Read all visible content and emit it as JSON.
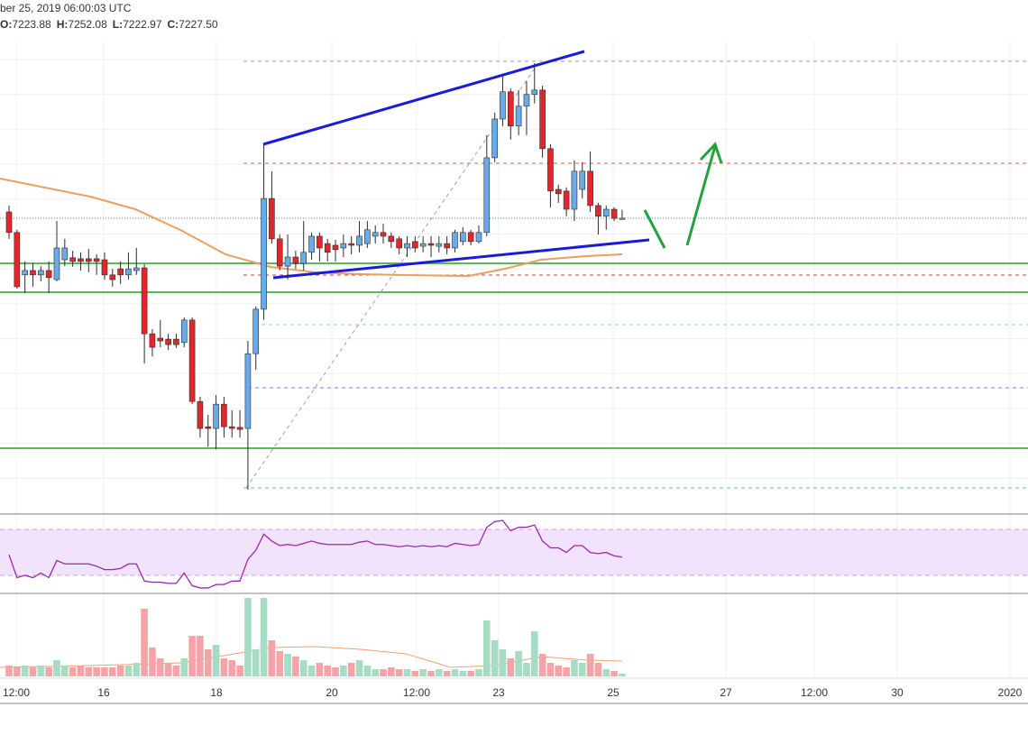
{
  "chart_data": {
    "type": "candlestick",
    "header": {
      "date": "ber 25, 2019 06:00:03 UTC",
      "fields": [
        "O:",
        "H:",
        "L:",
        "C:"
      ],
      "value_labels": [
        "7223.88",
        "7252.08",
        "7222.97",
        "7227.50"
      ]
    },
    "x_labels": [
      "12:00",
      "16",
      "18",
      "20",
      "12:00",
      "23",
      "25",
      "27",
      "12:00",
      "30",
      "2020"
    ],
    "open": [
      7246,
      7185,
      7059,
      7072,
      7059,
      7072,
      7045,
      7104,
      7110,
      7107,
      7107,
      7107,
      7104,
      7059,
      7077,
      7059,
      7072,
      7080,
      6884,
      6871,
      6868,
      6868,
      6858,
      6925,
      6683,
      6608,
      6603,
      6675,
      6608,
      6606,
      6603,
      6825,
      6957,
      7286,
      7166,
      7085,
      7112,
      7093,
      7126,
      7174,
      7152,
      7147,
      7139,
      7152,
      7147,
      7152,
      7174,
      7185,
      7174,
      7166,
      7139,
      7158,
      7144,
      7152,
      7144,
      7152,
      7139,
      7158,
      7185,
      7158,
      7185,
      7407,
      7522,
      7603,
      7501,
      7560,
      7595,
      7608,
      7434,
      7313,
      7308,
      7254,
      7313,
      7367,
      7265,
      7233,
      7254,
      7223.88
    ],
    "high": [
      7265,
      7193,
      7099,
      7093,
      7085,
      7099,
      7219,
      7166,
      7131,
      7126,
      7136,
      7120,
      7126,
      7077,
      7099,
      7126,
      7139,
      7091,
      6898,
      6925,
      6884,
      6884,
      6933,
      6933,
      6697,
      6643,
      6702,
      6697,
      6657,
      6657,
      6863,
      6965,
      7447,
      7367,
      7179,
      7179,
      7131,
      7219,
      7185,
      7185,
      7166,
      7163,
      7179,
      7174,
      7219,
      7219,
      7206,
      7211,
      7185,
      7174,
      7174,
      7174,
      7174,
      7174,
      7174,
      7174,
      7193,
      7201,
      7193,
      7206,
      7474,
      7541,
      7648,
      7613,
      7608,
      7635,
      7688,
      7621,
      7447,
      7327,
      7319,
      7399,
      7394,
      7426,
      7273,
      7265,
      7260,
      7252.08
    ],
    "low": [
      7166,
      7018,
      7005,
      7024,
      7040,
      7005,
      7040,
      7085,
      7083,
      7072,
      7067,
      7059,
      7045,
      7024,
      7032,
      7045,
      7059,
      6796,
      6817,
      6844,
      6836,
      6842,
      6844,
      6675,
      6576,
      6549,
      6541,
      6576,
      6576,
      6576,
      6421,
      6777,
      6925,
      7152,
      7072,
      7045,
      7077,
      7072,
      7104,
      7099,
      7099,
      7099,
      7112,
      7120,
      7126,
      7139,
      7152,
      7152,
      7139,
      7120,
      7112,
      7126,
      7126,
      7112,
      7126,
      7120,
      7126,
      7147,
      7147,
      7152,
      7174,
      7394,
      7501,
      7461,
      7474,
      7474,
      7568,
      7407,
      7260,
      7273,
      7233,
      7219,
      7286,
      7246,
      7179,
      7193,
      7219,
      7222.97
    ],
    "close": [
      7185,
      7024,
      7072,
      7059,
      7072,
      7051,
      7139,
      7139,
      7099,
      7099,
      7099,
      7099,
      7059,
      7045,
      7059,
      7077,
      7080,
      6884,
      6844,
      6863,
      6852,
      6852,
      6925,
      6683,
      6603,
      6603,
      6675,
      6608,
      6603,
      6600,
      6825,
      6957,
      7286,
      7166,
      7085,
      7112,
      7093,
      7126,
      7174,
      7139,
      7126,
      7134,
      7152,
      7147,
      7174,
      7193,
      7185,
      7174,
      7158,
      7139,
      7152,
      7139,
      7152,
      7147,
      7152,
      7139,
      7185,
      7185,
      7158,
      7185,
      7407,
      7522,
      7603,
      7501,
      7560,
      7595,
      7608,
      7434,
      7308,
      7300,
      7254,
      7367,
      7367,
      7265,
      7233,
      7254,
      7227,
      7227.5
    ],
    "volume": [
      12,
      10,
      12,
      10,
      12,
      10,
      18,
      12,
      10,
      12,
      10,
      10,
      10,
      10,
      12,
      12,
      15,
      75,
      32,
      20,
      15,
      12,
      20,
      45,
      45,
      30,
      35,
      20,
      18,
      12,
      87,
      30,
      87,
      40,
      28,
      25,
      22,
      18,
      12,
      15,
      12,
      10,
      12,
      15,
      18,
      12,
      8,
      8,
      10,
      8,
      8,
      6,
      8,
      6,
      8,
      6,
      8,
      6,
      6,
      8,
      62,
      40,
      30,
      20,
      28,
      15,
      50,
      25,
      15,
      12,
      10,
      18,
      15,
      25,
      15,
      8,
      6,
      3
    ],
    "rsi": [
      48,
      28,
      30,
      28,
      32,
      28,
      43,
      40,
      40,
      40,
      40,
      38,
      35,
      35,
      36,
      40,
      40,
      25,
      24,
      24,
      23,
      23,
      32,
      21,
      19,
      19,
      22,
      22,
      25,
      25,
      44,
      52,
      66,
      60,
      56,
      57,
      56,
      58,
      60,
      58,
      57,
      57,
      57,
      57,
      59,
      60,
      57,
      57,
      56,
      55,
      56,
      55,
      56,
      55,
      56,
      55,
      58,
      57,
      56,
      57,
      72,
      77,
      78,
      69,
      72,
      72,
      74,
      60,
      54,
      54,
      50,
      56,
      56,
      50,
      49,
      50,
      47,
      46
    ],
    "ylim": [
      6354,
      7755
    ],
    "rsi_lim": [
      15,
      82
    ],
    "volume_lim": [
      0,
      90
    ],
    "up_color": "#6aaae8",
    "down_color": "#e3262c",
    "wick_color": "#2b2b2b",
    "volume_up_color": "#a6dcc4",
    "volume_down_color": "#f2a4a8",
    "rsi_color": "#9c27b0"
  }
}
